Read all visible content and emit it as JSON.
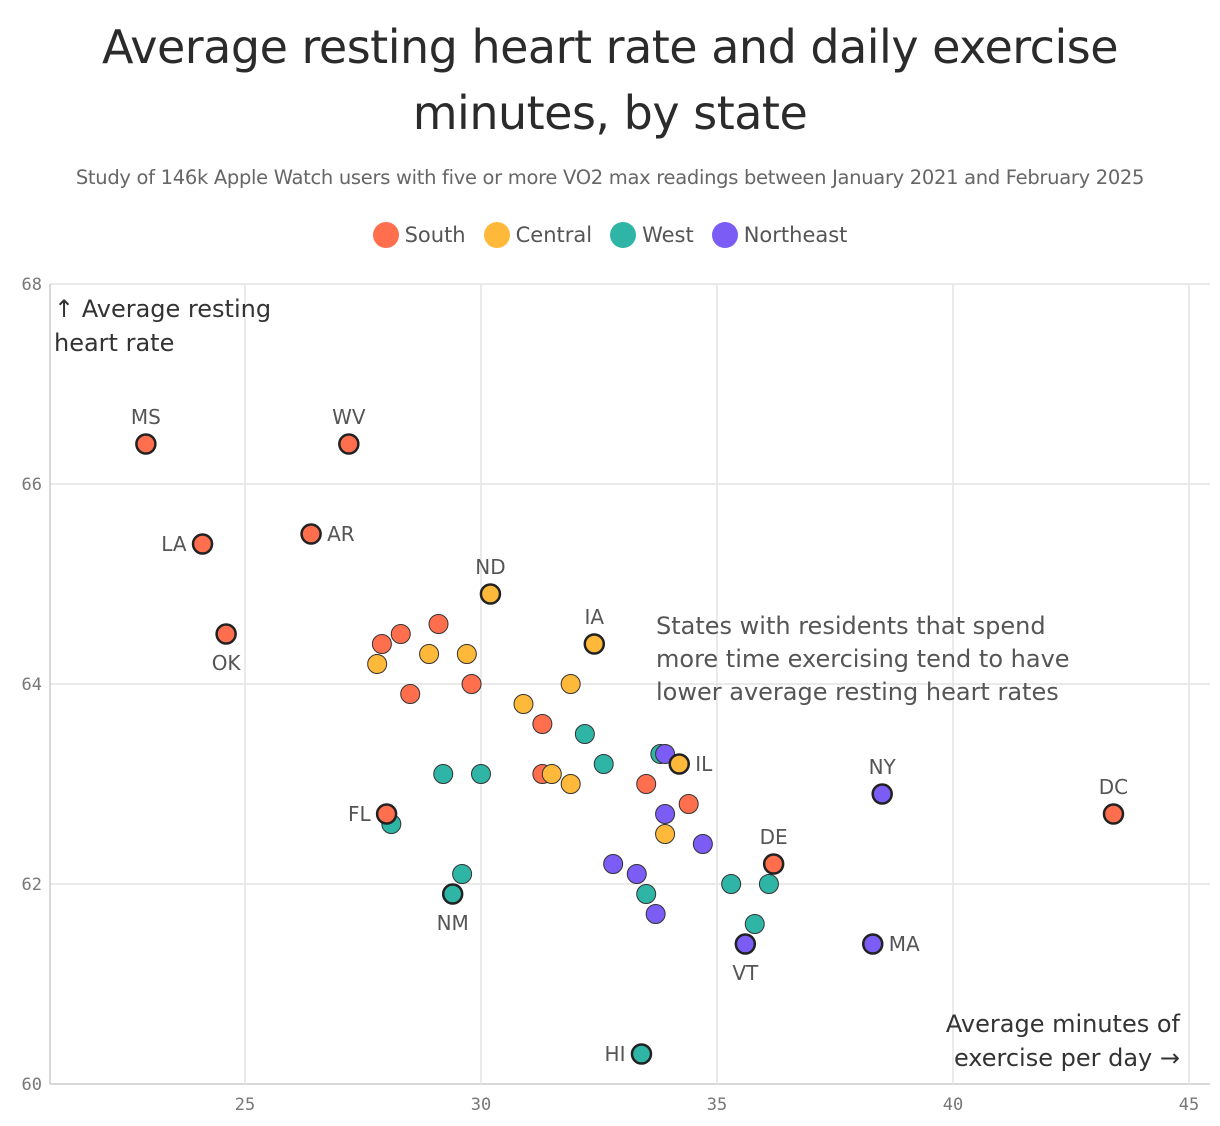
{
  "chart_data": {
    "type": "scatter",
    "title": "Average resting heart rate and daily exercise minutes, by state",
    "subtitle": "Study of 146k Apple Watch users with five or more VO2 max readings between January 2021 and February 2025",
    "ylabel_lines": [
      "↑ Average resting",
      "heart rate"
    ],
    "xlabel_lines": [
      "Average minutes of",
      "exercise per day →"
    ],
    "annotation_lines": [
      "States with residents that spend",
      "more time exercising tend to have",
      "lower average resting heart rates"
    ],
    "xlim": [
      20.9,
      45.5
    ],
    "ylim": [
      60,
      68
    ],
    "xticks": [
      25,
      30,
      35,
      40,
      45
    ],
    "yticks": [
      60,
      62,
      64,
      66,
      68
    ],
    "grid": true,
    "legend_position": "top-center",
    "series": [
      {
        "name": "South",
        "color": "#ff6f4e",
        "points": [
          {
            "x": 22.9,
            "y": 66.4,
            "label": "MS"
          },
          {
            "x": 27.2,
            "y": 66.4,
            "label": "WV"
          },
          {
            "x": 24.1,
            "y": 65.4,
            "label": "LA"
          },
          {
            "x": 26.4,
            "y": 65.5,
            "label": "AR"
          },
          {
            "x": 24.6,
            "y": 64.5,
            "label": "OK"
          },
          {
            "x": 27.9,
            "y": 64.4
          },
          {
            "x": 28.3,
            "y": 64.5
          },
          {
            "x": 29.1,
            "y": 64.6
          },
          {
            "x": 28.5,
            "y": 63.9
          },
          {
            "x": 29.8,
            "y": 64.0
          },
          {
            "x": 31.3,
            "y": 63.6
          },
          {
            "x": 31.3,
            "y": 63.1
          },
          {
            "x": 33.5,
            "y": 63.0
          },
          {
            "x": 34.4,
            "y": 62.8
          },
          {
            "x": 28.0,
            "y": 62.7,
            "label": "FL"
          },
          {
            "x": 36.2,
            "y": 62.2,
            "label": "DE"
          },
          {
            "x": 43.4,
            "y": 62.7,
            "label": "DC"
          }
        ]
      },
      {
        "name": "Central",
        "color": "#ffb93a",
        "points": [
          {
            "x": 30.2,
            "y": 64.9,
            "label": "ND"
          },
          {
            "x": 32.4,
            "y": 64.4,
            "label": "IA"
          },
          {
            "x": 27.8,
            "y": 64.2
          },
          {
            "x": 28.9,
            "y": 64.3
          },
          {
            "x": 29.7,
            "y": 64.3
          },
          {
            "x": 30.9,
            "y": 63.8
          },
          {
            "x": 31.9,
            "y": 64.0
          },
          {
            "x": 31.5,
            "y": 63.1
          },
          {
            "x": 31.9,
            "y": 63.0
          },
          {
            "x": 33.9,
            "y": 62.5
          },
          {
            "x": 34.2,
            "y": 63.2,
            "label": "IL"
          }
        ]
      },
      {
        "name": "West",
        "color": "#2fb5a5",
        "points": [
          {
            "x": 28.1,
            "y": 62.6
          },
          {
            "x": 29.2,
            "y": 63.1
          },
          {
            "x": 30.0,
            "y": 63.1
          },
          {
            "x": 29.6,
            "y": 62.1
          },
          {
            "x": 29.4,
            "y": 61.9,
            "label": "NM"
          },
          {
            "x": 32.2,
            "y": 63.5
          },
          {
            "x": 32.6,
            "y": 63.2
          },
          {
            "x": 33.8,
            "y": 63.3
          },
          {
            "x": 33.5,
            "y": 61.9
          },
          {
            "x": 35.3,
            "y": 62.0
          },
          {
            "x": 36.1,
            "y": 62.0
          },
          {
            "x": 35.8,
            "y": 61.6
          },
          {
            "x": 33.4,
            "y": 60.3,
            "label": "HI"
          }
        ]
      },
      {
        "name": "Northeast",
        "color": "#7b5cf5",
        "points": [
          {
            "x": 33.9,
            "y": 63.3
          },
          {
            "x": 33.9,
            "y": 62.7
          },
          {
            "x": 34.7,
            "y": 62.4
          },
          {
            "x": 32.8,
            "y": 62.2
          },
          {
            "x": 33.3,
            "y": 62.1
          },
          {
            "x": 33.7,
            "y": 61.7
          },
          {
            "x": 35.6,
            "y": 61.4,
            "label": "VT"
          },
          {
            "x": 38.3,
            "y": 61.4,
            "label": "MA"
          },
          {
            "x": 38.5,
            "y": 62.9,
            "label": "NY"
          }
        ]
      }
    ]
  }
}
